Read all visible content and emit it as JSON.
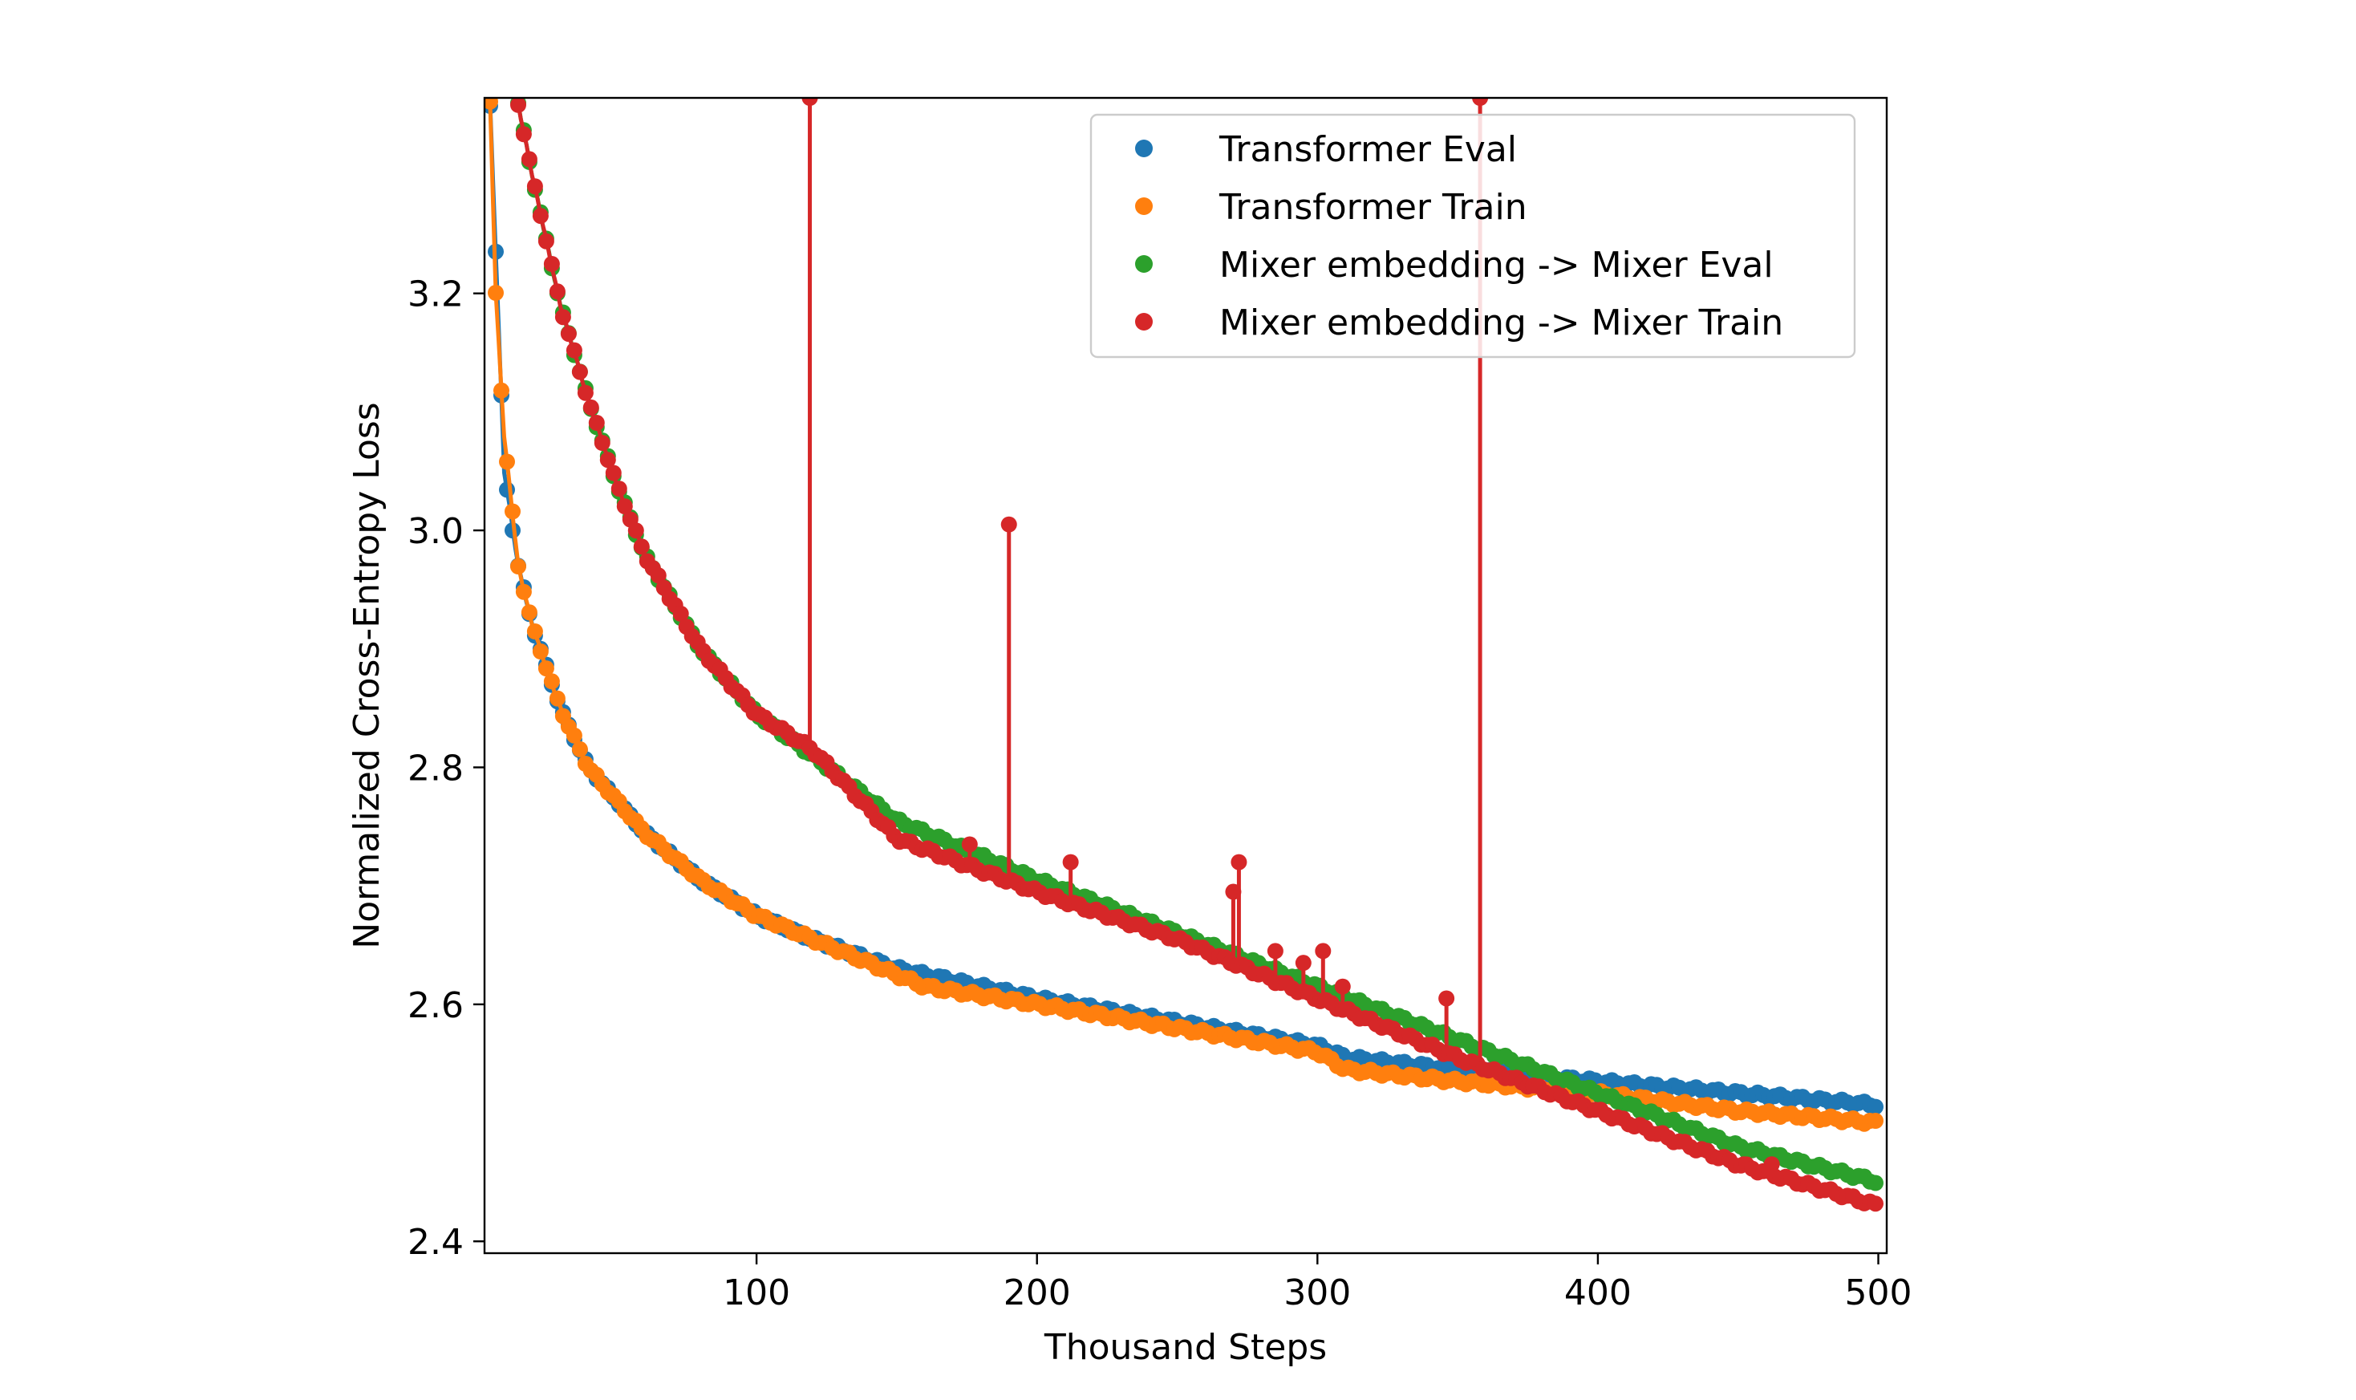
{
  "chart_data": {
    "type": "scatter",
    "xlabel": "Thousand Steps",
    "ylabel": "Normalized Cross-Entropy Loss",
    "xlim": [
      3,
      503
    ],
    "ylim": [
      2.39,
      3.365
    ],
    "xticks": [
      100,
      200,
      300,
      400,
      500
    ],
    "yticks": [
      2.4,
      2.6,
      2.8,
      3.0,
      3.2
    ],
    "xtick_labels": [
      "100",
      "200",
      "300",
      "400",
      "500"
    ],
    "ytick_labels": [
      "2.4",
      "2.6",
      "2.8",
      "3.0",
      "3.2"
    ],
    "grid": false,
    "legend_placement": "upper-right",
    "series": [
      {
        "name": "Transformer Eval",
        "color": "#1f77b4",
        "x": [
          5,
          10,
          15,
          20,
          30,
          40,
          60,
          80,
          100,
          120,
          150,
          160,
          200,
          250,
          300,
          310,
          350,
          400,
          450,
          500
        ],
        "y": [
          3.36,
          3.05,
          2.97,
          2.92,
          2.85,
          2.8,
          2.745,
          2.705,
          2.675,
          2.655,
          2.63,
          2.625,
          2.605,
          2.585,
          2.565,
          2.555,
          2.545,
          2.535,
          2.525,
          2.515
        ]
      },
      {
        "name": "Transformer Train",
        "color": "#ff7f0e",
        "x": [
          5,
          7,
          10,
          15,
          20,
          30,
          40,
          60,
          80,
          100,
          120,
          150,
          160,
          200,
          250,
          300,
          310,
          350,
          400,
          450,
          500
        ],
        "y": [
          3.36,
          3.2,
          3.08,
          2.97,
          2.92,
          2.85,
          2.8,
          2.745,
          2.705,
          2.675,
          2.655,
          2.625,
          2.615,
          2.6,
          2.58,
          2.56,
          2.545,
          2.535,
          2.525,
          2.51,
          2.5
        ]
      },
      {
        "name": "Mixer embedding -> Mixer Eval",
        "color": "#2ca02c",
        "x": [
          15,
          20,
          30,
          40,
          50,
          60,
          80,
          100,
          120,
          150,
          200,
          250,
          300,
          350,
          400,
          450,
          500
        ],
        "y": [
          3.36,
          3.3,
          3.19,
          3.11,
          3.04,
          2.98,
          2.9,
          2.845,
          2.81,
          2.755,
          2.705,
          2.66,
          2.615,
          2.57,
          2.525,
          2.48,
          2.45
        ]
      },
      {
        "name": "Mixer embedding -> Mixer Train",
        "color": "#d62728",
        "x": [
          15,
          20,
          30,
          40,
          50,
          60,
          80,
          100,
          120,
          150,
          200,
          250,
          300,
          350,
          400,
          450,
          500
        ],
        "y": [
          3.36,
          3.3,
          3.19,
          3.11,
          3.04,
          2.98,
          2.9,
          2.845,
          2.815,
          2.74,
          2.695,
          2.655,
          2.605,
          2.555,
          2.51,
          2.465,
          2.43
        ],
        "spikes": [
          {
            "x": 119,
            "y": 3.365
          },
          {
            "x": 176,
            "y": 2.735
          },
          {
            "x": 190,
            "y": 3.005
          },
          {
            "x": 212,
            "y": 2.72
          },
          {
            "x": 270,
            "y": 2.695
          },
          {
            "x": 272,
            "y": 2.72
          },
          {
            "x": 285,
            "y": 2.645
          },
          {
            "x": 295,
            "y": 2.635
          },
          {
            "x": 302,
            "y": 2.645
          },
          {
            "x": 309,
            "y": 2.615
          },
          {
            "x": 346,
            "y": 2.605
          },
          {
            "x": 358,
            "y": 3.365
          },
          {
            "x": 452,
            "y": 2.465
          },
          {
            "x": 462,
            "y": 2.465
          }
        ]
      }
    ]
  }
}
